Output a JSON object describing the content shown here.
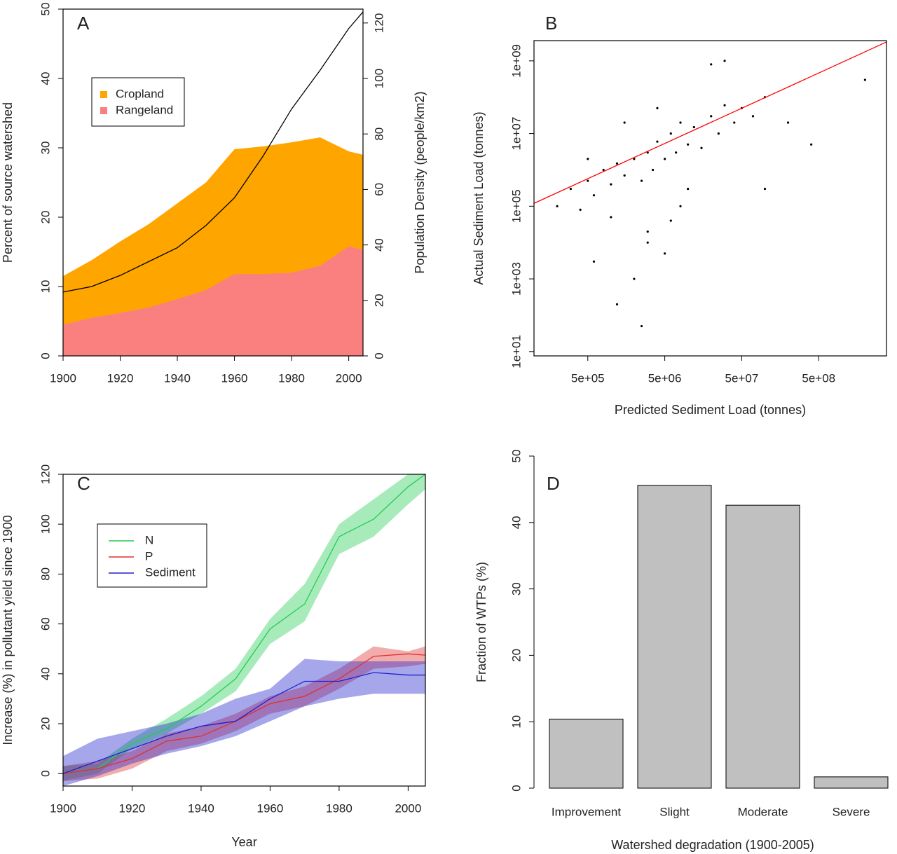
{
  "chart_data": [
    {
      "type": "area",
      "panel_label": "A",
      "y_label": "Percent of source watershed",
      "y2_label": "Population Density (people/km2)",
      "x": [
        1900,
        1910,
        1920,
        1930,
        1940,
        1950,
        1960,
        1970,
        1980,
        1990,
        2000,
        2005
      ],
      "series": [
        {
          "name": "Cropland",
          "color": "#ffa500",
          "values": [
            11.5,
            13.8,
            16.5,
            19,
            22,
            25,
            29.8,
            30.2,
            30.8,
            31.5,
            29.5,
            29
          ]
        },
        {
          "name": "Rangeland",
          "color": "#fa8080",
          "values": [
            4.5,
            5.5,
            6.2,
            7,
            8.2,
            9.5,
            11.8,
            11.8,
            12,
            13,
            15.8,
            15.3
          ]
        },
        {
          "color": "#000000",
          "axis": "y2",
          "values": [
            23,
            25,
            29,
            34,
            39,
            47,
            57,
            72,
            89,
            103,
            118,
            124
          ]
        }
      ],
      "xlim": [
        1900,
        2005
      ],
      "xticks": [
        1900,
        1920,
        1940,
        1960,
        1980,
        2000
      ],
      "ylim": [
        0,
        50
      ],
      "yticks": [
        0,
        10,
        20,
        30,
        40,
        50
      ],
      "y2lim": [
        0,
        125
      ],
      "y2ticks": [
        0,
        20,
        40,
        60,
        80,
        100,
        120
      ],
      "legend": "top-left"
    },
    {
      "type": "scatter",
      "panel_label": "B",
      "x_label": "Predicted Sediment Load (tonnes)",
      "y_label": "Actual Sediment Load (tonnes)",
      "x": [
        200000.0,
        300000.0,
        400000.0,
        500000.0,
        600000.0,
        800000.0,
        1000000.0,
        1200000.0,
        1500000.0,
        2000000.0,
        2500000.0,
        3000000.0,
        3500000.0,
        4000000.0,
        5000000.0,
        6000000.0,
        7000000.0,
        8000000.0,
        10000000.0,
        12000000.0,
        15000000.0,
        20000000.0,
        25000000.0,
        30000000.0,
        40000000.0,
        50000000.0,
        70000000.0,
        100000000.0,
        200000000.0,
        3000000.0,
        5000000.0,
        1000000.0,
        2000000.0,
        8000000.0,
        20000000.0,
        500000.0,
        10000000.0,
        4000000.0,
        600000.0,
        30000000.0,
        1500000.0,
        400000000.0,
        2000000000.0,
        1200000.0,
        3000000.0,
        2500000.0,
        6000000.0,
        100000000.0
      ],
      "y": [
        100000.0,
        300000.0,
        80000.0,
        500000.0,
        200000.0,
        1000000.0,
        400000.0,
        1500000.0,
        700000.0,
        2000000.0,
        500000.0,
        3000000.0,
        1000000.0,
        6000000.0,
        2000000.0,
        10000000.0,
        3000000.0,
        20000000.0,
        5000000.0,
        15000000.0,
        4000000.0,
        30000000.0,
        10000000.0,
        60000000.0,
        20000000.0,
        50000000.0,
        30000000.0,
        100000000.0,
        20000000.0,
        20000.0,
        5000.0,
        50000.0,
        1000.0,
        100000.0,
        800000000.0,
        2000000.0,
        300000.0,
        50000000.0,
        3000.0,
        1000000000.0,
        20000000.0,
        5000000.0,
        300000000.0,
        200.0,
        10000.0,
        50.0,
        40000.0,
        300000.0
      ],
      "color": "#000000",
      "log_x": true,
      "log_y": true,
      "xlim": [
        100000.0,
        3800000000.0
      ],
      "ylim": [
        7.6,
        3600000000.0
      ],
      "xticks": [
        {
          "value": 500000,
          "label": "5e+05"
        },
        {
          "value": 5000000,
          "label": "5e+06"
        },
        {
          "value": 50000000,
          "label": "5e+07"
        },
        {
          "value": 500000000,
          "label": "5e+08"
        }
      ],
      "yticks": [
        {
          "value": 10,
          "label": "1e+01"
        },
        {
          "value": 1000,
          "label": "1e+03"
        },
        {
          "value": 100000,
          "label": "1e+05"
        },
        {
          "value": 10000000,
          "label": "1e+07"
        },
        {
          "value": 1000000000,
          "label": "1e+09"
        }
      ],
      "fit_line": {
        "x": [
          100000.0,
          3800000000.0
        ],
        "y": [
          120000.0,
          3300000000.0
        ],
        "color": "#ff0000"
      }
    },
    {
      "type": "line",
      "panel_label": "C",
      "x_label": "Year",
      "y_label": "Increase (%) in pollutant yield since 1900",
      "x": [
        1900,
        1910,
        1920,
        1930,
        1940,
        1950,
        1960,
        1970,
        1980,
        1990,
        2000,
        2005
      ],
      "series": [
        {
          "name": "N",
          "color": "#22cc55",
          "values": [
            0,
            2,
            12,
            18,
            27,
            38,
            58,
            68,
            95,
            102,
            115,
            120
          ],
          "lower": [
            -3,
            0,
            10,
            16,
            24,
            33,
            52,
            61,
            88,
            95,
            108,
            114
          ],
          "upper": [
            3,
            4,
            14,
            22,
            31,
            42,
            62,
            76,
            100,
            110,
            120,
            122
          ]
        },
        {
          "name": "P",
          "color": "#e03030",
          "values": [
            0,
            2,
            6,
            13,
            15,
            21,
            28,
            31,
            38,
            47,
            48,
            47.5
          ],
          "lower": [
            -3,
            -2,
            2,
            9,
            12,
            17,
            24,
            27,
            34,
            42,
            43,
            44
          ],
          "upper": [
            3,
            5,
            9,
            16,
            19,
            24,
            31,
            35,
            42,
            51,
            49,
            51
          ]
        },
        {
          "name": "Sediment",
          "color": "#2020cc",
          "values": [
            0,
            5,
            10,
            15,
            19,
            21,
            30,
            37,
            37,
            40.5,
            39.5,
            39.5
          ],
          "lower": [
            -5,
            -1,
            4,
            8,
            11,
            15,
            21,
            27,
            30,
            32,
            32,
            32
          ],
          "upper": [
            7,
            14,
            17,
            20,
            24,
            30,
            34,
            46,
            45,
            45,
            45,
            45
          ]
        }
      ],
      "xlim": [
        1900,
        2005
      ],
      "xticks": [
        1900,
        1920,
        1940,
        1960,
        1980,
        2000
      ],
      "ylim": [
        -5,
        120
      ],
      "yticks": [
        0,
        20,
        40,
        60,
        80,
        100,
        120
      ],
      "legend": "top-left"
    },
    {
      "type": "bar",
      "panel_label": "D",
      "x_label": "Watershed degradation (1900-2005)",
      "y_label": "Fraction of WTPs (%)",
      "categories": [
        "Improvement",
        "Slight",
        "Moderate",
        "Severe"
      ],
      "values": [
        10.4,
        45.6,
        42.6,
        1.7
      ],
      "color": "#c0c0c0",
      "ylim": [
        0,
        50
      ],
      "yticks": [
        0,
        10,
        20,
        30,
        40,
        50
      ]
    }
  ]
}
